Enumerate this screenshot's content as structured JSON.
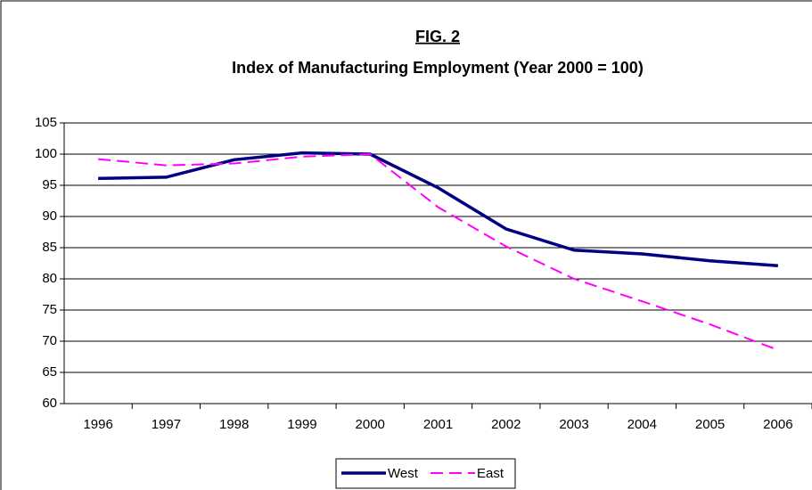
{
  "chart_data": {
    "type": "line",
    "title": "FIG. 2",
    "subtitle": "Index of Manufacturing Employment (Year 2000 = 100)",
    "categories": [
      "1996",
      "1997",
      "1998",
      "1999",
      "2000",
      "2001",
      "2002",
      "2003",
      "2004",
      "2005",
      "2006"
    ],
    "series": [
      {
        "name": "West",
        "color": "#000080",
        "dash": "solid",
        "values": [
          96.1,
          96.3,
          99.1,
          100.2,
          100,
          94.6,
          88,
          84.6,
          84,
          82.9,
          82.1
        ]
      },
      {
        "name": "East",
        "color": "#ff00ff",
        "dash": "dashed",
        "values": [
          99.2,
          98.2,
          98.5,
          99.6,
          100,
          91.5,
          85.2,
          80,
          76.4,
          72.7,
          68.6
        ]
      }
    ],
    "ylim": [
      60,
      105
    ],
    "yticks": [
      60,
      65,
      70,
      75,
      80,
      85,
      90,
      95,
      100,
      105
    ],
    "grid": true,
    "legend": "bottom"
  }
}
